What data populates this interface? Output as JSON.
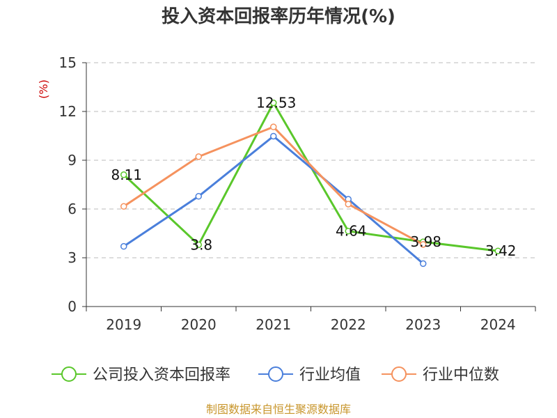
{
  "chart_data": {
    "type": "line",
    "title": "投入资本回报率历年情况(%)",
    "ylabel": "(%)",
    "xlabel": "",
    "categories": [
      "2019",
      "2020",
      "2021",
      "2022",
      "2023",
      "2024"
    ],
    "ylim": [
      0,
      15
    ],
    "yticks": [
      "0",
      "3",
      "6",
      "9",
      "12",
      "15"
    ],
    "grid": true,
    "legend_position": "bottom",
    "series": [
      {
        "name": "公司投入资本回报率",
        "color": "#5ac72b",
        "values": [
          8.11,
          3.8,
          12.53,
          4.64,
          3.98,
          3.42
        ],
        "labels": [
          "8.11",
          "3.8",
          "12.53",
          "4.64",
          "3.98",
          "3.42"
        ]
      },
      {
        "name": "行业均值",
        "color": "#4a7fdb",
        "values": [
          3.7,
          6.78,
          10.48,
          6.6,
          2.64,
          null
        ]
      },
      {
        "name": "行业中位数",
        "color": "#f5925e",
        "values": [
          6.16,
          9.22,
          11.05,
          6.3,
          3.82,
          null
        ]
      }
    ],
    "source": "制图数据来自恒生聚源数据库"
  }
}
